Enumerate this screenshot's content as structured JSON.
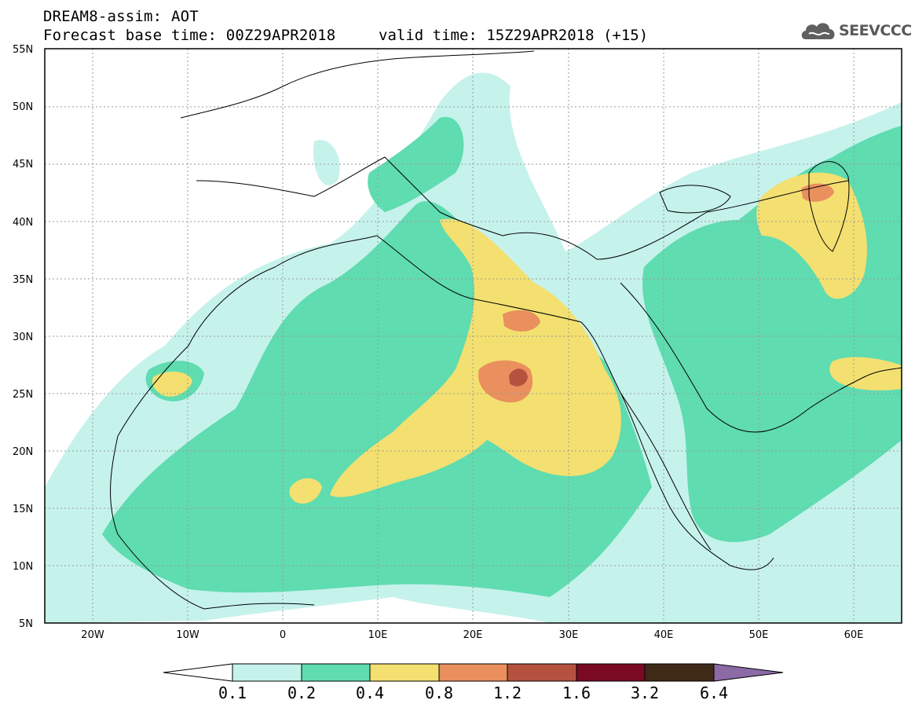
{
  "header": {
    "line1": "DREAM8-assim: AOT",
    "line2": "Forecast base time: 00Z29APR2018",
    "line3": "valid time: 15Z29APR2018 (+15)"
  },
  "logo": {
    "text": "SEEVCCC",
    "icon": "cloud-icon"
  },
  "map": {
    "lon_range": [
      -25,
      65
    ],
    "lat_range": [
      5,
      55
    ],
    "lat_ticks": [
      "55N",
      "50N",
      "45N",
      "40N",
      "35N",
      "30N",
      "25N",
      "20N",
      "15N",
      "10N",
      "5N"
    ],
    "lon_ticks": [
      "20W",
      "10W",
      "0",
      "10E",
      "20E",
      "30E",
      "40E",
      "50E",
      "60E"
    ]
  },
  "colorbar": {
    "levels": [
      "0.1",
      "0.2",
      "0.4",
      "0.8",
      "1.2",
      "1.6",
      "3.2",
      "6.4"
    ],
    "colors": [
      "#ffffff",
      "#c6f2ec",
      "#5fdcb0",
      "#f3e070",
      "#e9905e",
      "#b5523f",
      "#7a0a23",
      "#3e2a17",
      "#8b6aa6"
    ]
  },
  "colors": {
    "frame": "#000000",
    "land_lines": "#000000",
    "grid": "#9a9a9a",
    "background": "#ffffff"
  }
}
